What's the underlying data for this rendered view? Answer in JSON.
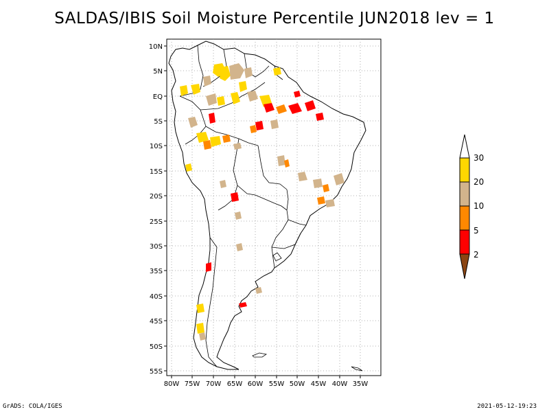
{
  "title": "SALDAS/IBIS Soil Moisture Percentile JUN2018 lev = 1",
  "footer": {
    "left": "GrADS: COLA/IGES",
    "right": "2021-05-12-19:23"
  },
  "map": {
    "region": "South America",
    "lon_range": [
      -81,
      -30
    ],
    "lat_range": [
      -56,
      11
    ],
    "grid": "dotted",
    "lat_labels": [
      "10N",
      "5N",
      "EQ",
      "5S",
      "10S",
      "15S",
      "20S",
      "25S",
      "30S",
      "35S",
      "40S",
      "45S",
      "50S",
      "55S"
    ],
    "lon_labels": [
      "80W",
      "75W",
      "70W",
      "65W",
      "60W",
      "55W",
      "50W",
      "45W",
      "40W",
      "35W"
    ]
  },
  "colorbar": {
    "levels": [
      "2",
      "5",
      "10",
      "20",
      "30"
    ],
    "colors": {
      "below_2": "#8B4513",
      "2_5": "#ff0000",
      "5_10": "#ff8800",
      "10_20": "#d2b48c",
      "20_30": "#ffd700",
      "above_30": "#ffffff"
    }
  }
}
